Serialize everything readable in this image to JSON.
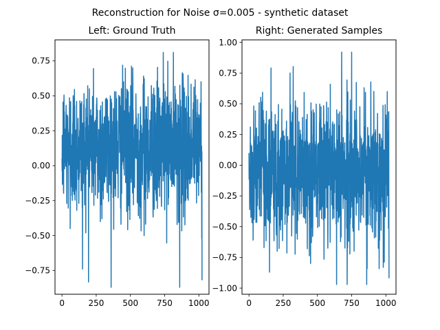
{
  "figure": {
    "suptitle": "Reconstruction for Noise σ=0.005 - synthetic dataset"
  },
  "chart_data": [
    {
      "type": "line",
      "title": "Left: Ground Truth",
      "xlabel": "",
      "ylabel": "",
      "xlim": [
        -51,
        1074
      ],
      "ylim": [
        -0.92,
        0.9
      ],
      "xticks": [
        0,
        250,
        500,
        750,
        1000
      ],
      "xtick_labels": [
        "0",
        "250",
        "500",
        "750",
        "1000"
      ],
      "yticks": [
        -0.75,
        -0.5,
        -0.25,
        0.0,
        0.25,
        0.5,
        0.75
      ],
      "ytick_labels": [
        "−0.75",
        "−0.50",
        "−0.25",
        "0.00",
        "0.25",
        "0.50",
        "0.75"
      ],
      "grid": false,
      "series_color": "#1f77b4",
      "n_points": 1024,
      "y_range": [
        -0.87,
        0.81
      ],
      "x": [
        0,
        60,
        150,
        200,
        280,
        450,
        600,
        740,
        860,
        960,
        1023
      ],
      "y": [
        0.05,
        -0.45,
        -0.74,
        0.55,
        -0.4,
        0.6,
        -0.5,
        0.81,
        -0.87,
        0.45,
        -0.82
      ]
    },
    {
      "type": "line",
      "title": "Right: Generated Samples",
      "xlabel": "",
      "ylabel": "",
      "xlim": [
        -51,
        1074
      ],
      "ylim": [
        -1.05,
        1.02
      ],
      "xticks": [
        0,
        250,
        500,
        750,
        1000
      ],
      "xtick_labels": [
        "0",
        "250",
        "500",
        "750",
        "1000"
      ],
      "yticks": [
        -1.0,
        -0.75,
        -0.5,
        -0.25,
        0.0,
        0.25,
        0.5,
        0.75,
        1.0
      ],
      "ytick_labels": [
        "−1.00",
        "−0.75",
        "−0.50",
        "−0.25",
        "0.00",
        "0.25",
        "0.50",
        "0.75",
        "1.00"
      ],
      "grid": false,
      "series_color": "#1f77b4",
      "n_points": 1024,
      "y_range": [
        -0.97,
        0.92
      ],
      "x": [
        0,
        150,
        300,
        450,
        640,
        750,
        860,
        1010,
        1023
      ],
      "y": [
        0.1,
        -0.87,
        0.75,
        -0.8,
        -0.97,
        0.92,
        -0.97,
        0.6,
        -0.92
      ]
    }
  ]
}
